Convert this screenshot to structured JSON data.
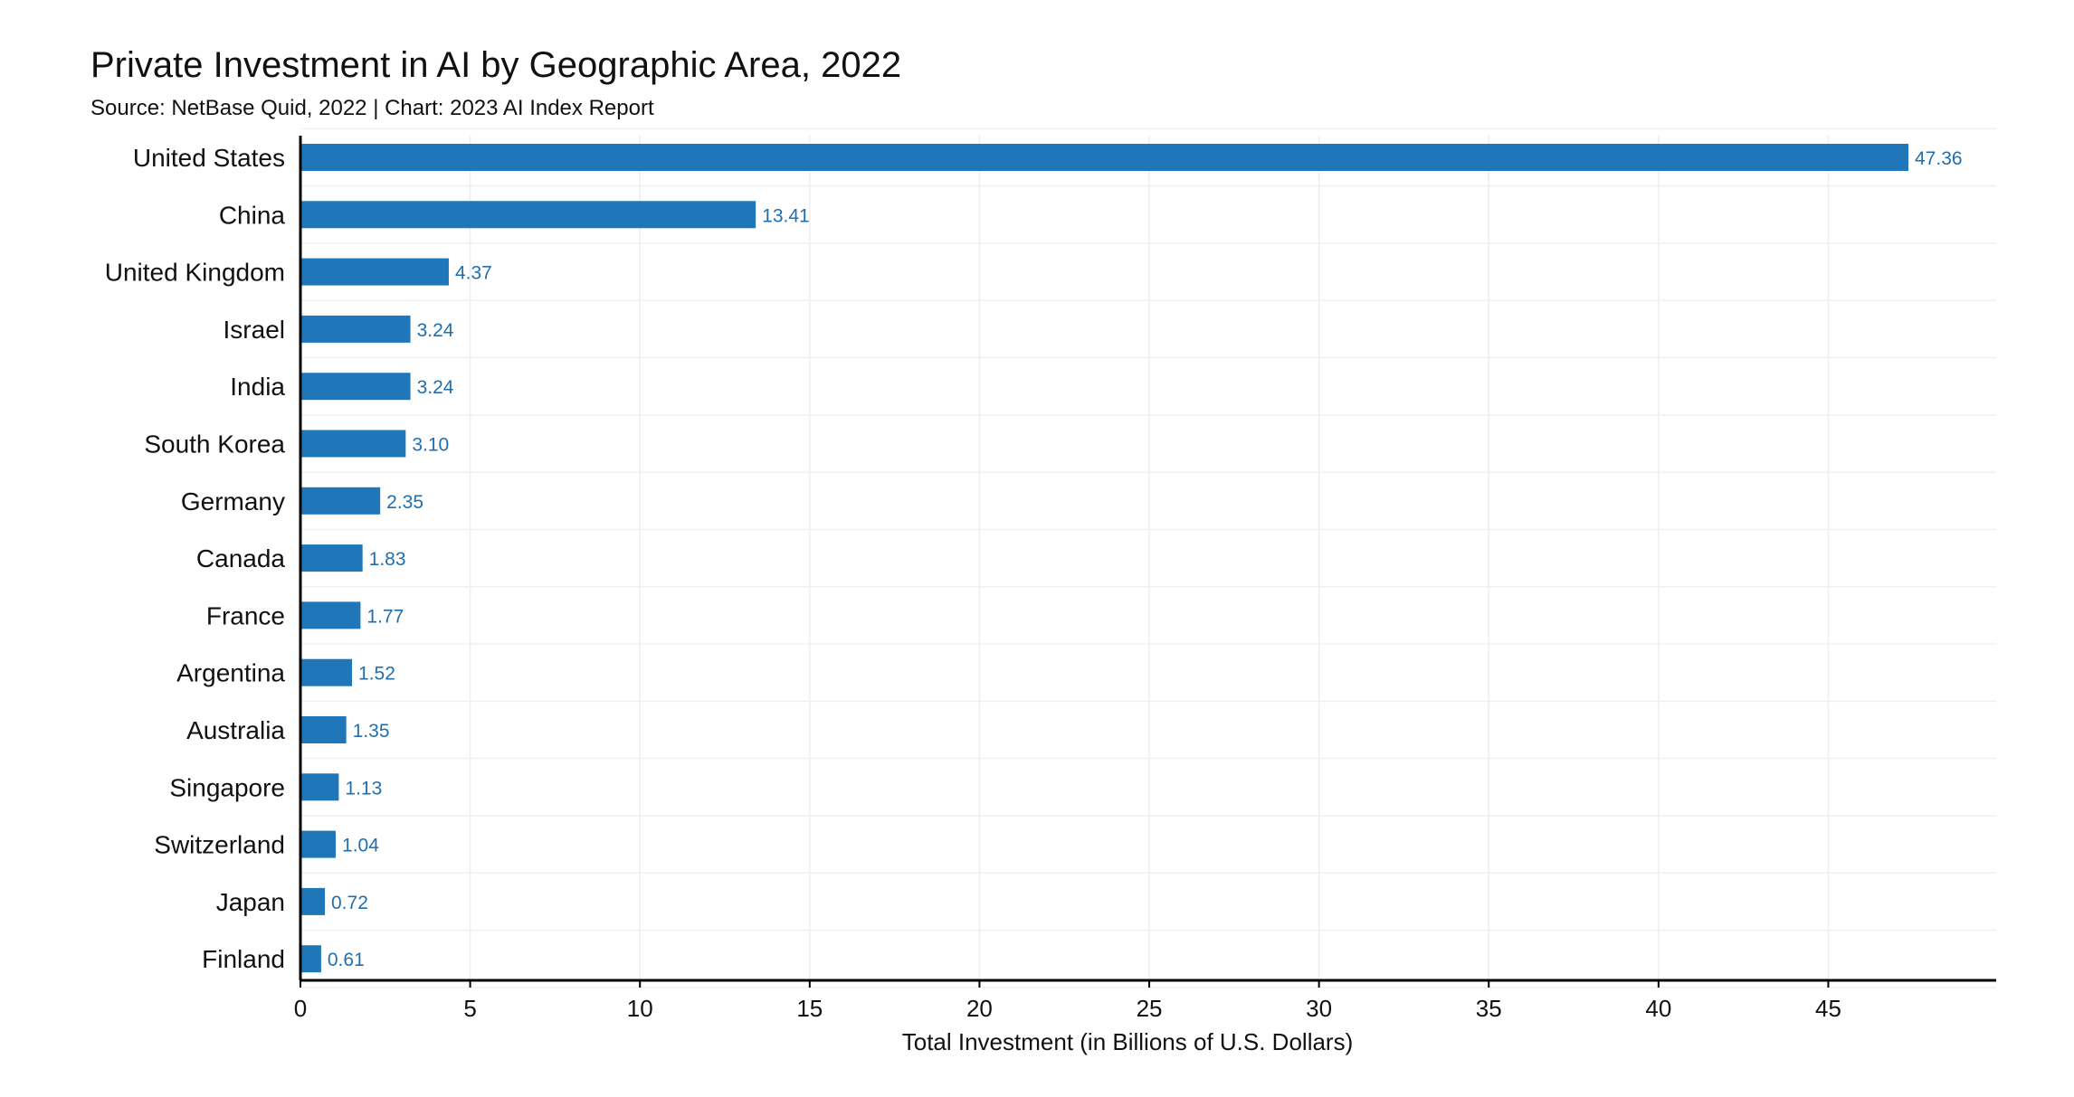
{
  "chart_data": {
    "type": "bar",
    "orientation": "horizontal",
    "title": "Private Investment in AI by Geographic Area, 2022",
    "subtitle": "Source: NetBase Quid, 2022 | Chart: 2023 AI Index Report",
    "xlabel": "Total Investment (in Billions of U.S. Dollars)",
    "ylabel": "",
    "xlim": [
      0,
      50
    ],
    "xticks": [
      0,
      5,
      10,
      15,
      20,
      25,
      30,
      35,
      40,
      45
    ],
    "grid": true,
    "bar_color": "#1f77b9",
    "label_color": "#1f6fb0",
    "categories": [
      "United States",
      "China",
      "United Kingdom",
      "Israel",
      "India",
      "South Korea",
      "Germany",
      "Canada",
      "France",
      "Argentina",
      "Australia",
      "Singapore",
      "Switzerland",
      "Japan",
      "Finland"
    ],
    "values": [
      47.36,
      13.41,
      4.37,
      3.24,
      3.24,
      3.1,
      2.35,
      1.83,
      1.77,
      1.52,
      1.35,
      1.13,
      1.04,
      0.72,
      0.61
    ],
    "value_labels": [
      "47.36",
      "13.41",
      "4.37",
      "3.24",
      "3.24",
      "3.10",
      "2.35",
      "1.83",
      "1.77",
      "1.52",
      "1.35",
      "1.13",
      "1.04",
      "0.72",
      "0.61"
    ]
  }
}
